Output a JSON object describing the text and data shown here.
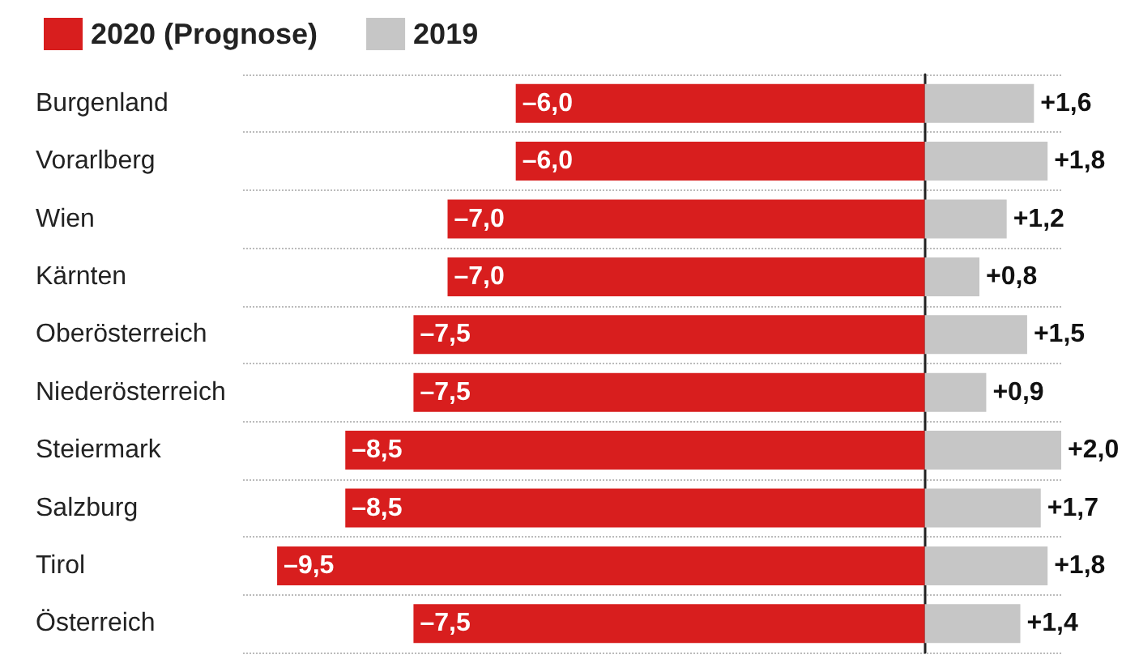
{
  "chart_data": {
    "type": "bar",
    "orientation": "horizontal",
    "stacked": true,
    "grid": "y",
    "legend": "top left",
    "tick_labels": "y",
    "categories": [
      "Burgenland",
      "Vorarlberg",
      "Wien",
      "Kärnten",
      "Oberösterreich",
      "Niederösterreich",
      "Steiermark",
      "Salzburg",
      "Tirol",
      "Österreich"
    ],
    "series": [
      {
        "name": "2020 (Prognose)",
        "color": "#d81e1e",
        "values": [
          -6.0,
          -6.0,
          -7.0,
          -7.0,
          -7.5,
          -7.5,
          -8.5,
          -8.5,
          -9.5,
          -7.5
        ],
        "value_labels": [
          "–6,0",
          "–6,0",
          "–7,0",
          "–7,0",
          "–7,5",
          "–7,5",
          "–8,5",
          "–8,5",
          "–9,5",
          "–7,5"
        ]
      },
      {
        "name": "2019",
        "color": "#c6c6c6",
        "values": [
          1.6,
          1.8,
          1.2,
          0.8,
          1.5,
          0.9,
          2.0,
          1.7,
          1.8,
          1.4
        ],
        "value_labels": [
          "+1,6",
          "+1,8",
          "+1,2",
          "+0,8",
          "+1,5",
          "+0,9",
          "+2,0",
          "+1,7",
          "+1,8",
          "+1,4"
        ]
      }
    ]
  }
}
